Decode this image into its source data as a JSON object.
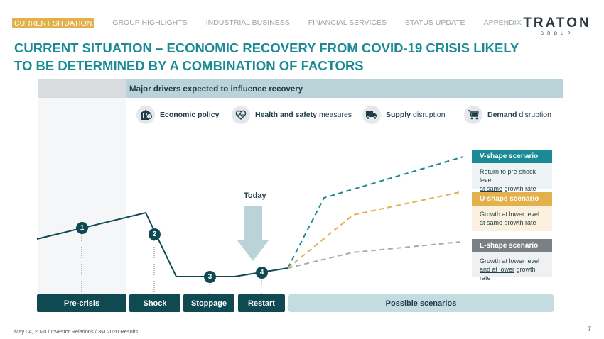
{
  "nav": {
    "items": [
      "CURRENT SITUATION",
      "GROUP HIGHLIGHTS",
      "INDUSTRIAL BUSINESS",
      "FINANCIAL SERVICES",
      "STATUS UPDATE",
      "APPENDIX"
    ],
    "active_index": 0
  },
  "logo": {
    "name": "TRATON",
    "sub": "GROUP"
  },
  "title": "CURRENT SITUATION – ECONOMIC RECOVERY FROM COVID-19 CRISIS LIKELY TO BE DETERMINED BY A COMBINATION OF FACTORS",
  "drivers": {
    "header": "Major drivers expected to influence recovery",
    "items": [
      {
        "bold": "Economic policy",
        "rest": "",
        "icon": "bank-euro-icon"
      },
      {
        "bold": "Health and safety",
        "rest": "measures",
        "icon": "heart-pulse-icon"
      },
      {
        "bold": "Supply",
        "rest": "disruption",
        "icon": "truck-icon"
      },
      {
        "bold": "Demand",
        "rest": "disruption",
        "icon": "cart-icon"
      }
    ]
  },
  "scenarios": [
    {
      "title": "V-shape scenario",
      "line1": "Return to pre-shock level",
      "line2_u": "at same",
      "line2_rest": "growth rate",
      "color": "#1a8a94",
      "body_bg": "#eef4f5"
    },
    {
      "title": "U-shape scenario",
      "line1": "Growth at lower level",
      "line2_u": "at same",
      "line2_rest": "growth rate",
      "color": "#e3b04b",
      "body_bg": "#fbf1de"
    },
    {
      "title": "L-shape scenario",
      "line1": "Growth at lower level",
      "line2_u": "and at lower",
      "line2_rest": "growth rate",
      "color": "#7a7f83",
      "body_bg": "#eff0f1"
    }
  ],
  "phases": [
    "Pre-crisis",
    "Shock",
    "Stoppage",
    "Restart"
  ],
  "possible": "Possible scenarios",
  "markers": [
    "1",
    "2",
    "3",
    "4"
  ],
  "today": "Today",
  "footer": "May 04, 2020 / Investor Relations / 3M 2020 Results",
  "page_number": "7",
  "colors": {
    "teal": "#1a8a94",
    "dark": "#0f4a53",
    "gold": "#e3b04b",
    "gray": "#a8aaac"
  }
}
